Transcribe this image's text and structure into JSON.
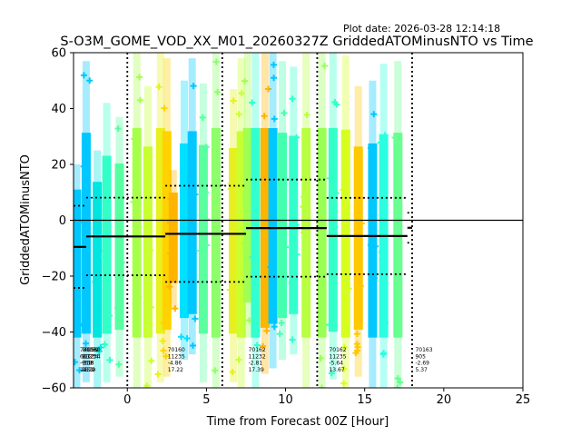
{
  "chart_data": {
    "type": "scatter",
    "plot_date": "Plot date: 2026-03-28 12:14:18",
    "title": "S-O3M_GOME_VOD_XX_M01_20260327Z GriddedATOMinusNTO vs Time",
    "xlabel": "Time from Forecast 00Z [Hour]",
    "ylabel": "GriddedATOMinusNTO",
    "xlim": [
      -3.4,
      25
    ],
    "ylim": [
      -60,
      60
    ],
    "xticks": [
      0,
      5,
      10,
      15,
      20,
      25
    ],
    "yticks": [
      -60,
      -40,
      -20,
      0,
      20,
      40,
      60
    ],
    "zero_line": 0,
    "window_boundaries": [
      0,
      6,
      12,
      18
    ],
    "windows": [
      {
        "x0": -3.4,
        "x1": -2.6,
        "mean": -9.53,
        "upper": 5.2,
        "lower": -24.2,
        "std": 14.7
      },
      {
        "x0": -2.6,
        "x1": 2.4,
        "mean": -5.8,
        "upper": 8.1,
        "lower": -19.7,
        "std": 13.9
      },
      {
        "x0": 2.4,
        "x1": 7.5,
        "mean": -4.86,
        "upper": 12.36,
        "lower": -22.08,
        "std": 17.22
      },
      {
        "x0": 7.5,
        "x1": 12.6,
        "mean": -2.81,
        "upper": 14.58,
        "lower": -20.2,
        "std": 17.39
      },
      {
        "x0": 12.6,
        "x1": 17.7,
        "mean": -5.64,
        "upper": 8.03,
        "lower": -19.31,
        "std": 13.67
      },
      {
        "x0": 17.7,
        "x1": 18.0,
        "mean": -2.69,
        "upper": 2.68,
        "lower": -8.06,
        "std": 5.37
      }
    ],
    "stat_labels": [
      {
        "x": -3.0,
        "lines": [
          "70158",
          "6672",
          "-9.53",
          "14.70"
        ]
      },
      {
        "x": -2.9,
        "lines": [
          "70159",
          "11234",
          "-5.8",
          "13.9"
        ]
      },
      {
        "x": -2.8,
        "lines": [
          "70160",
          "11234",
          "-5.8",
          "13.9"
        ]
      },
      {
        "x": 2.55,
        "lines": [
          "70160",
          "11235",
          "-4.86",
          "17.22"
        ]
      },
      {
        "x": 7.65,
        "lines": [
          "70162",
          "11232",
          "-2.81",
          "17.39"
        ]
      },
      {
        "x": 12.75,
        "lines": [
          "70162",
          "11235",
          "-5.64",
          "13.67"
        ]
      },
      {
        "x": 18.2,
        "lines": [
          "70163",
          "905",
          "-2.69",
          "5.37"
        ]
      }
    ],
    "observation_bands": [
      {
        "x": -3.2,
        "ymin": -60,
        "ymax": 20,
        "color": "#00c8ff"
      },
      {
        "x": -2.6,
        "ymin": -58,
        "ymax": 57,
        "color": "#00c8ff"
      },
      {
        "x": -1.9,
        "ymin": -60,
        "ymax": 25,
        "color": "#00e5e0"
      },
      {
        "x": -1.3,
        "ymin": -58,
        "ymax": 42,
        "color": "#33ffc8"
      },
      {
        "x": -0.5,
        "ymin": -56,
        "ymax": 37,
        "color": "#57ffa0"
      },
      {
        "x": 0.6,
        "ymin": -60,
        "ymax": 60,
        "color": "#a8ff4a"
      },
      {
        "x": 1.3,
        "ymin": -60,
        "ymax": 48,
        "color": "#c8ff30"
      },
      {
        "x": 2.1,
        "ymin": -58,
        "ymax": 60,
        "color": "#e8f020"
      },
      {
        "x": 2.5,
        "ymin": -56,
        "ymax": 58,
        "color": "#ffd200"
      },
      {
        "x": 2.9,
        "ymin": -32,
        "ymax": 18,
        "color": "#ffb400"
      },
      {
        "x": 3.6,
        "ymin": -50,
        "ymax": 50,
        "color": "#00e0ff"
      },
      {
        "x": 4.1,
        "ymin": -48,
        "ymax": 58,
        "color": "#00c8ff"
      },
      {
        "x": 4.8,
        "ymin": -58,
        "ymax": 49,
        "color": "#5affa0"
      },
      {
        "x": 5.6,
        "ymin": -60,
        "ymax": 60,
        "color": "#8cff6a"
      },
      {
        "x": 6.7,
        "ymin": -58,
        "ymax": 47,
        "color": "#e6f020"
      },
      {
        "x": 7.2,
        "ymin": -60,
        "ymax": 58,
        "color": "#c8ff30"
      },
      {
        "x": 7.6,
        "ymin": -42,
        "ymax": 60,
        "color": "#a0ff50"
      },
      {
        "x": 8.1,
        "ymin": -60,
        "ymax": 60,
        "color": "#33ffd0"
      },
      {
        "x": 8.7,
        "ymin": -55,
        "ymax": 60,
        "color": "#ffb400"
      },
      {
        "x": 9.2,
        "ymin": -53,
        "ymax": 60,
        "color": "#00c8ff"
      },
      {
        "x": 9.8,
        "ymin": -50,
        "ymax": 57,
        "color": "#44ffb0"
      },
      {
        "x": 10.5,
        "ymin": -48,
        "ymax": 55,
        "color": "#33ffcc"
      },
      {
        "x": 11.3,
        "ymin": -60,
        "ymax": 60,
        "color": "#b8ff40"
      },
      {
        "x": 12.3,
        "ymin": -60,
        "ymax": 60,
        "color": "#99ff55"
      },
      {
        "x": 13.0,
        "ymin": -57,
        "ymax": 60,
        "color": "#33ffc8"
      },
      {
        "x": 13.8,
        "ymin": -60,
        "ymax": 59,
        "color": "#d6ff20"
      },
      {
        "x": 14.6,
        "ymin": -56,
        "ymax": 48,
        "color": "#ffc800"
      },
      {
        "x": 15.5,
        "ymin": -60,
        "ymax": 50,
        "color": "#00c8ff"
      },
      {
        "x": 16.2,
        "ymin": -60,
        "ymax": 56,
        "color": "#2affe0"
      },
      {
        "x": 17.1,
        "ymin": -60,
        "ymax": 57,
        "color": "#66ff90"
      }
    ]
  }
}
